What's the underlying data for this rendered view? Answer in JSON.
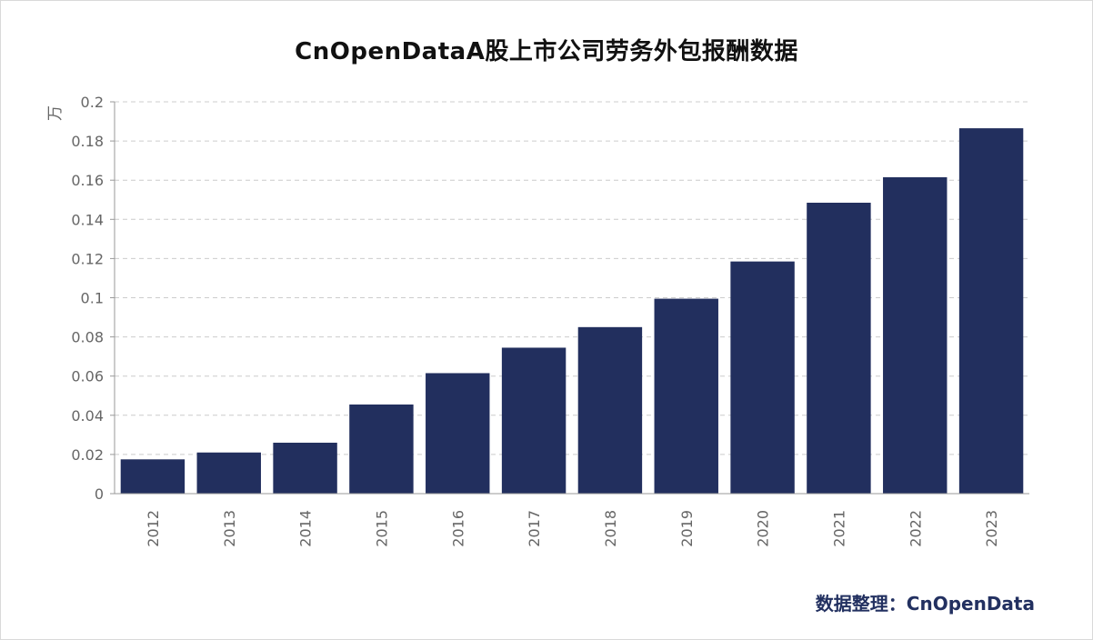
{
  "chart_data": {
    "type": "bar",
    "title": "CnOpenDataA股上市公司劳务外包报酬数据",
    "ylabel": "万",
    "xlabel": "",
    "categories": [
      "2012",
      "2013",
      "2014",
      "2015",
      "2016",
      "2017",
      "2018",
      "2019",
      "2020",
      "2021",
      "2022",
      "2023"
    ],
    "values": [
      0.0175,
      0.021,
      0.026,
      0.0455,
      0.0615,
      0.0745,
      0.085,
      0.0995,
      0.1185,
      0.1485,
      0.1615,
      0.1865
    ],
    "ylim": [
      0,
      0.2
    ],
    "yticks": [
      "0",
      "0.02",
      "0.04",
      "0.06",
      "0.08",
      "0.1",
      "0.12",
      "0.14",
      "0.16",
      "0.18",
      "0.2"
    ],
    "grid": true,
    "bar_color": "#222f5e"
  },
  "footer": {
    "source": "数据整理：CnOpenData"
  }
}
